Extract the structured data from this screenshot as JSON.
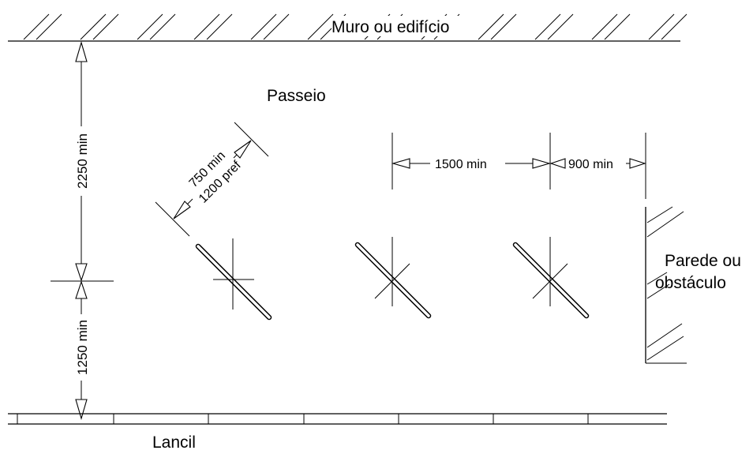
{
  "labels": {
    "wall": "Muro ou edifício",
    "sidewalk": "Passeio",
    "obstacle_line1": "Parede ou",
    "obstacle_line2": "obstáculo",
    "curb": "Lancil"
  },
  "dimensions": {
    "vertical_top": "2250 min",
    "vertical_bottom": "1250 min",
    "diagonal_line1": "750 min",
    "diagonal_line2": "1200 pref",
    "horizontal_left": "1500 min",
    "horizontal_right": "900 min"
  },
  "colors": {
    "line": "#000000",
    "background": "#ffffff"
  }
}
